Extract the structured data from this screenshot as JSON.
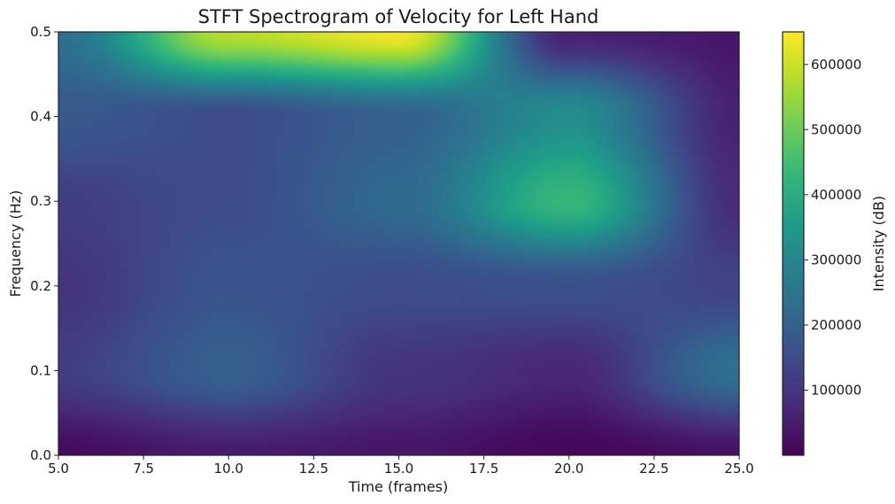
{
  "chart_data": {
    "type": "heatmap",
    "title": "STFT Spectrogram of Velocity for Left Hand",
    "xlabel": "Time (frames)",
    "ylabel": "Frequency (Hz)",
    "colorbar_label": "Intensity (dB)",
    "xlim": [
      5.0,
      25.0
    ],
    "ylim": [
      0.0,
      0.5
    ],
    "x_ticks": [
      "5.0",
      "7.5",
      "10.0",
      "12.5",
      "15.0",
      "17.5",
      "20.0",
      "22.5",
      "25.0"
    ],
    "y_ticks": [
      "0.0",
      "0.1",
      "0.2",
      "0.3",
      "0.4",
      "0.5"
    ],
    "colorbar_range": [
      0,
      650000
    ],
    "colorbar_ticks": [
      "100000",
      "200000",
      "300000",
      "400000",
      "500000",
      "600000"
    ],
    "colormap": "viridis",
    "times": [
      5,
      10,
      15,
      20,
      25
    ],
    "frequencies": [
      0.0,
      0.1,
      0.2,
      0.3,
      0.4,
      0.5
    ],
    "intensity": [
      [
        20000,
        50000,
        40000,
        10000,
        30000
      ],
      [
        120000,
        200000,
        100000,
        70000,
        240000
      ],
      [
        100000,
        170000,
        150000,
        160000,
        130000
      ],
      [
        120000,
        150000,
        220000,
        430000,
        80000
      ],
      [
        180000,
        150000,
        200000,
        320000,
        60000
      ],
      [
        240000,
        580000,
        640000,
        60000,
        40000
      ]
    ]
  }
}
